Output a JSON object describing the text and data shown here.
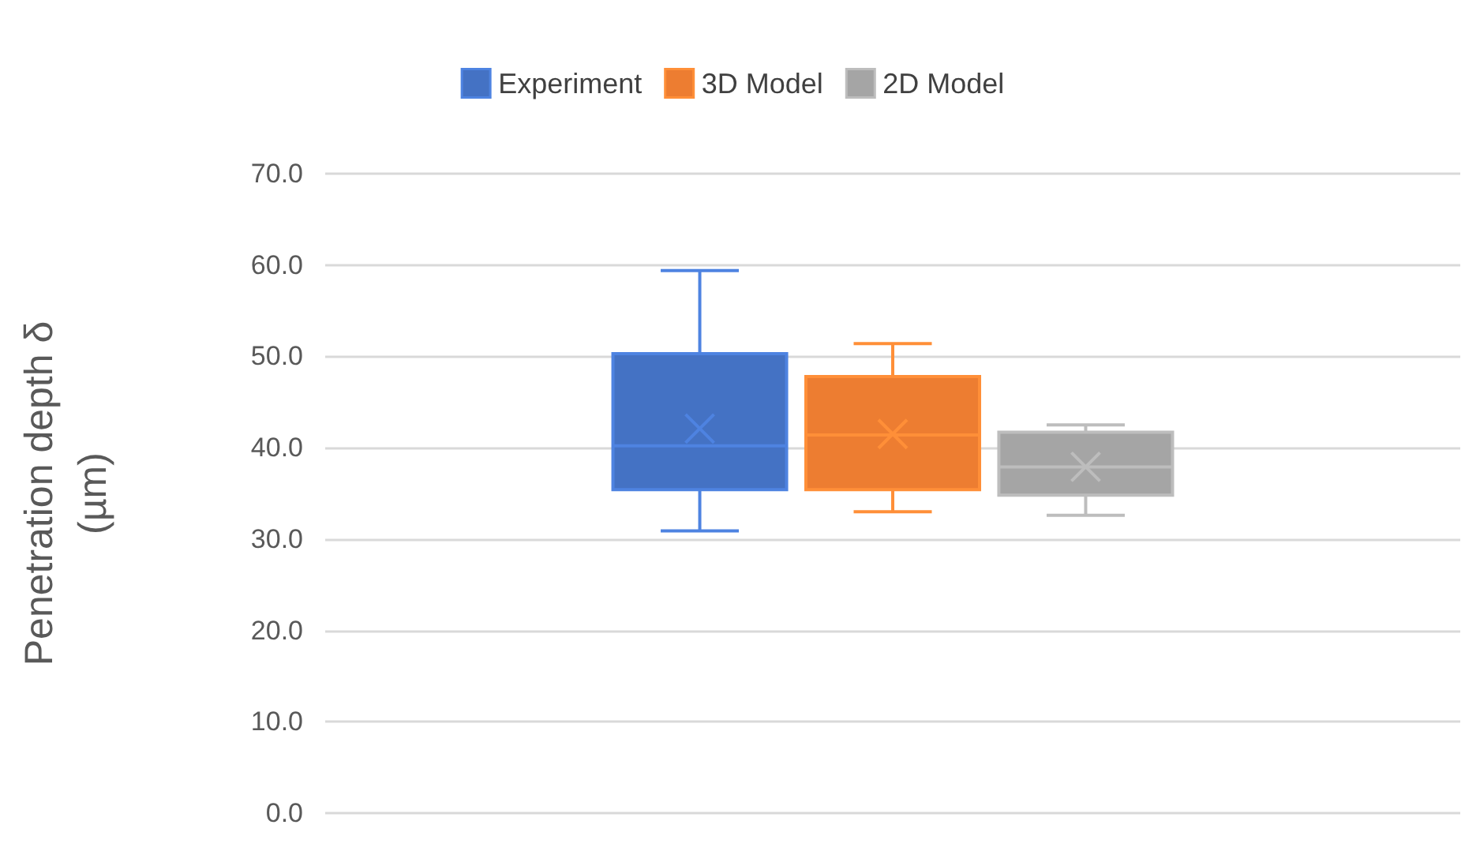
{
  "chart_data": {
    "type": "box",
    "ylabel": "Penetration depth δ (µm)",
    "categories": [
      null
    ],
    "series": [
      {
        "name": "Experiment",
        "color": "#4472c4",
        "boxes": [
          {
            "low": 30.9,
            "q1": 35.4,
            "median": 40.2,
            "q3": 50.3,
            "high": 59.4,
            "mean": 42.1
          }
        ]
      },
      {
        "name": "3D Model",
        "color": "#ed7d31",
        "boxes": [
          {
            "low": 33.0,
            "q1": 35.4,
            "median": 41.4,
            "q3": 47.8,
            "high": 51.4,
            "mean": 41.5
          }
        ]
      },
      {
        "name": "2D Model",
        "color": "#a5a5a5",
        "boxes": [
          {
            "low": 32.6,
            "q1": 34.8,
            "median": 37.9,
            "q3": 41.7,
            "high": 42.5,
            "mean": 37.9
          }
        ]
      }
    ],
    "ylim": [
      0,
      70
    ],
    "yticks": [
      {
        "value": 0,
        "label": "0.0"
      },
      {
        "value": 10,
        "label": "10.0"
      },
      {
        "value": 20,
        "label": "20.0"
      },
      {
        "value": 30,
        "label": "30.0"
      },
      {
        "value": 40,
        "label": "40.0"
      },
      {
        "value": 50,
        "label": "50.0"
      },
      {
        "value": 60,
        "label": "60.0"
      },
      {
        "value": 70,
        "label": "70.0"
      }
    ],
    "grid": "y",
    "legend": "top"
  }
}
